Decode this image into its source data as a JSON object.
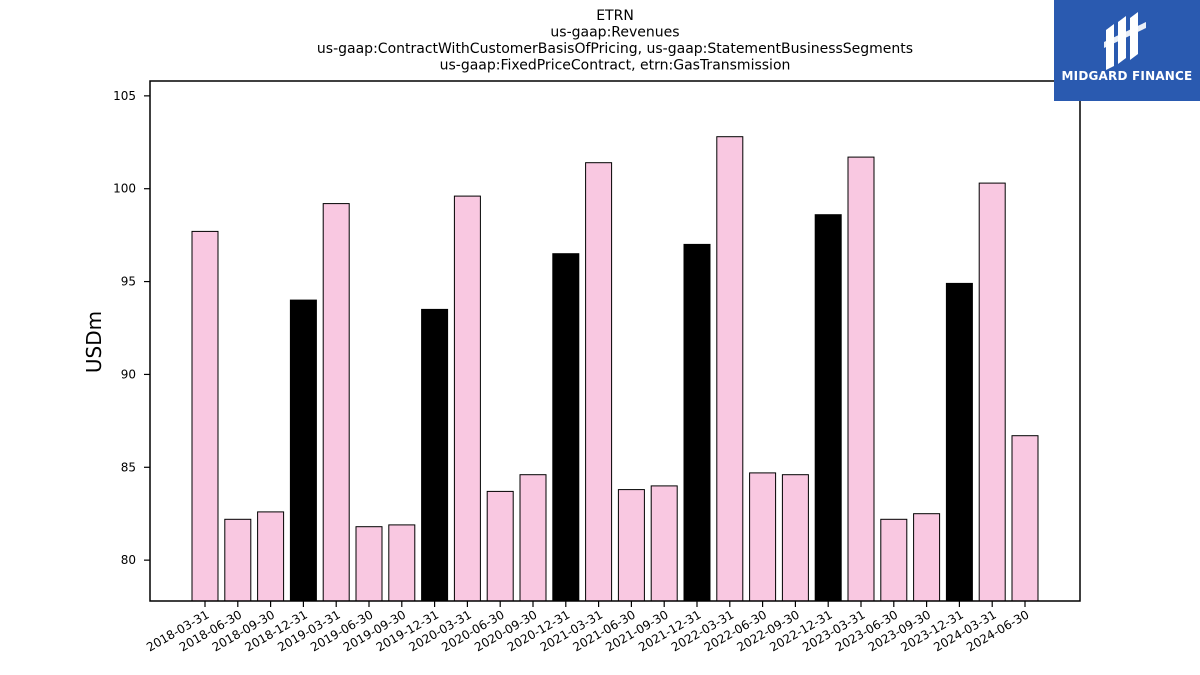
{
  "chart_data": {
    "type": "bar",
    "title_lines": [
      "ETRN",
      "us-gaap:Revenues",
      "us-gaap:ContractWithCustomerBasisOfPricing, us-gaap:StatementBusinessSegments",
      "us-gaap:FixedPriceContract, etrn:GasTransmission"
    ],
    "ylabel": "USDm",
    "ylim": [
      77.8,
      105.8
    ],
    "yticks": [
      80,
      85,
      90,
      95,
      100,
      105
    ],
    "categories": [
      "2018-03-31",
      "2018-06-30",
      "2018-09-30",
      "2018-12-31",
      "2019-03-31",
      "2019-06-30",
      "2019-09-30",
      "2019-12-31",
      "2020-03-31",
      "2020-06-30",
      "2020-09-30",
      "2020-12-31",
      "2021-03-31",
      "2021-06-30",
      "2021-09-30",
      "2021-12-31",
      "2022-03-31",
      "2022-06-30",
      "2022-09-30",
      "2022-12-31",
      "2023-03-31",
      "2023-06-30",
      "2023-09-30",
      "2023-12-31",
      "2024-03-31",
      "2024-06-30"
    ],
    "values": [
      97.7,
      82.2,
      82.6,
      94.0,
      99.2,
      81.8,
      81.9,
      93.5,
      99.6,
      83.7,
      84.6,
      96.5,
      101.4,
      83.8,
      84.0,
      97.0,
      102.8,
      84.7,
      84.6,
      98.6,
      101.7,
      82.2,
      82.5,
      94.9,
      100.3,
      86.7
    ],
    "highlight": [
      false,
      false,
      false,
      true,
      false,
      false,
      false,
      true,
      false,
      false,
      false,
      true,
      false,
      false,
      false,
      true,
      false,
      false,
      false,
      true,
      false,
      false,
      false,
      true,
      false,
      false
    ],
    "colors": {
      "normal": "#f9c8e1",
      "highlight": "#000000",
      "edge": "#000000"
    },
    "grid": false
  },
  "logo": {
    "text": "MIDGARD FINANCE",
    "background": "#2a5ab0"
  }
}
